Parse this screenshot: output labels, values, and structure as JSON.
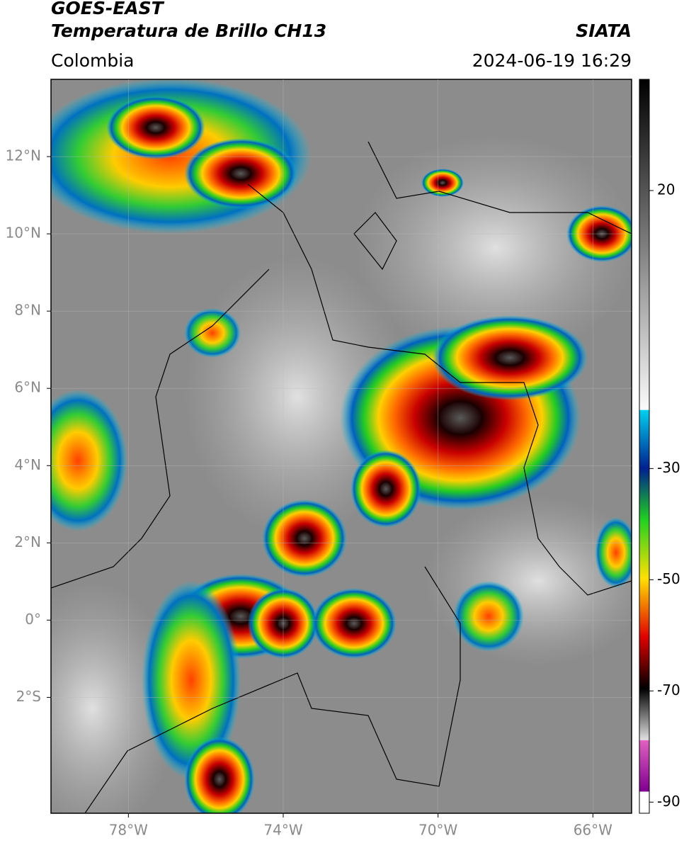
{
  "map": {
    "title": "GOES-EAST",
    "subtitle": "Temperatura de Brillo CH13",
    "source": "SIATA",
    "region": "Colombia",
    "datetime": "2024-06-19 16:29",
    "lon_range": [
      -80,
      -65
    ],
    "lat_range": [
      -5,
      14
    ],
    "lat_ticks": [
      {
        "value": 12,
        "label": "12°N"
      },
      {
        "value": 10,
        "label": "10°N"
      },
      {
        "value": 8,
        "label": "8°N"
      },
      {
        "value": 6,
        "label": "6°N"
      },
      {
        "value": 4,
        "label": "4°N"
      },
      {
        "value": 2,
        "label": "2°N"
      },
      {
        "value": 0,
        "label": "0°"
      },
      {
        "value": -2,
        "label": "2°S"
      }
    ],
    "lon_ticks": [
      {
        "value": -78,
        "label": "78°W"
      },
      {
        "value": -74,
        "label": "74°W"
      },
      {
        "value": -70,
        "label": "70°W"
      },
      {
        "value": -66,
        "label": "66°W"
      }
    ],
    "colorbar": {
      "lim": [
        -92,
        40
      ],
      "ticks": [
        20,
        -30,
        -50,
        -70,
        -90
      ]
    }
  }
}
